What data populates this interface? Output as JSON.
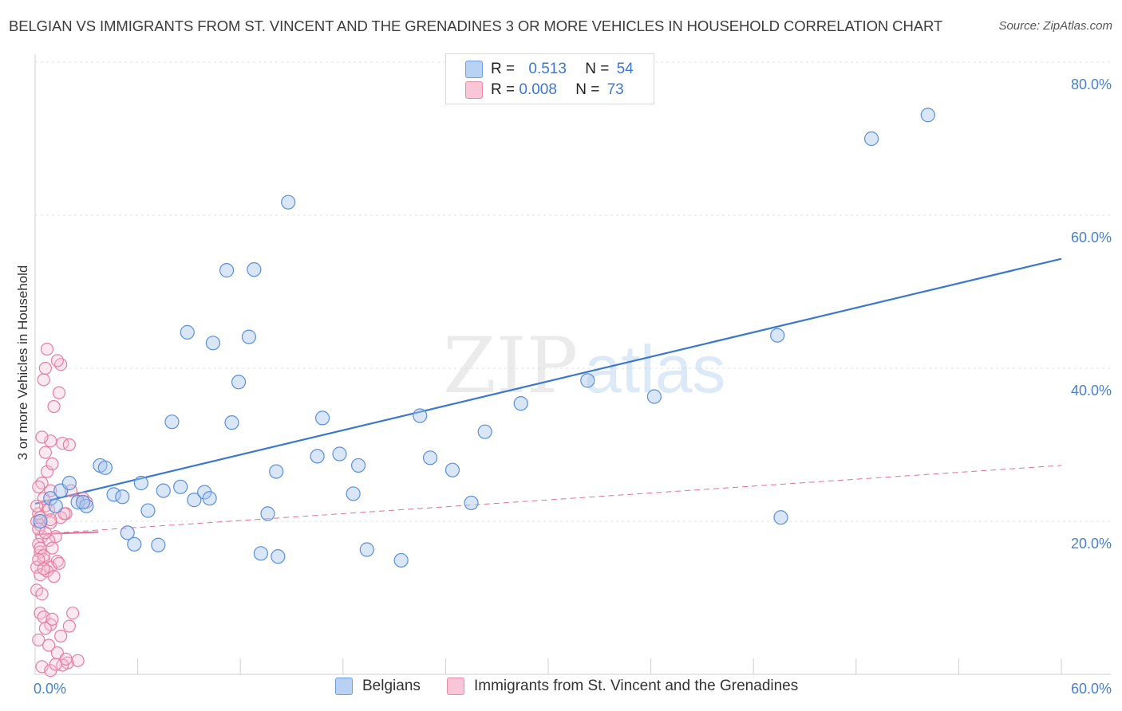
{
  "title": "BELGIAN VS IMMIGRANTS FROM ST. VINCENT AND THE GRENADINES 3 OR MORE VEHICLES IN HOUSEHOLD CORRELATION CHART",
  "source": "Source: ZipAtlas.com",
  "watermark": {
    "zip": "ZIP",
    "atlas": "atlas"
  },
  "colors": {
    "blue": "#4a86d8",
    "pink": "#e8729a",
    "blue_fill": "#a9c7f0",
    "pink_fill": "#f7bfd0"
  },
  "legend_top": {
    "rows": [
      {
        "r_label": "R = ",
        "r_value": "0.513",
        "n_label": "N = ",
        "n_value": "54",
        "color": "blue"
      },
      {
        "r_label": "R = ",
        "r_value": "0.008",
        "n_label": "N = ",
        "n_value": "73",
        "color": "pink"
      }
    ]
  },
  "legend_bottom": {
    "items": [
      "Belgians",
      "Immigrants from St. Vincent and the Grenadines"
    ]
  },
  "chart_data": {
    "type": "scatter",
    "ylabel": "3 or more Vehicles in Household",
    "xlabel": "",
    "xlim": [
      0,
      60
    ],
    "ylim": [
      0,
      80
    ],
    "x_tick_labels": [
      "0.0%",
      "60.0%"
    ],
    "y_ticks": [
      20,
      40,
      60,
      80
    ],
    "y_tick_labels": [
      "20.0%",
      "40.0%",
      "60.0%",
      "80.0%"
    ],
    "grid": true,
    "legend_position": "top-center",
    "series": [
      {
        "name": "Belgians",
        "color": "blue",
        "trend": {
          "x": [
            0,
            60
          ],
          "y": [
            22.3,
            54.3
          ],
          "style": "solid"
        },
        "points": [
          [
            0.3,
            20.0
          ],
          [
            0.9,
            23.0
          ],
          [
            1.5,
            24.0
          ],
          [
            2.0,
            25.0
          ],
          [
            2.5,
            22.5
          ],
          [
            3.0,
            22.0
          ],
          [
            2.8,
            22.5
          ],
          [
            3.8,
            27.3
          ],
          [
            4.1,
            27.0
          ],
          [
            4.6,
            23.5
          ],
          [
            5.1,
            23.2
          ],
          [
            5.4,
            18.5
          ],
          [
            5.8,
            17.0
          ],
          [
            6.2,
            25.0
          ],
          [
            6.6,
            21.4
          ],
          [
            7.2,
            16.9
          ],
          [
            7.5,
            24.0
          ],
          [
            8.0,
            33.0
          ],
          [
            8.5,
            24.5
          ],
          [
            8.9,
            44.7
          ],
          [
            9.3,
            22.8
          ],
          [
            9.9,
            23.8
          ],
          [
            10.2,
            23.0
          ],
          [
            10.4,
            43.3
          ],
          [
            11.2,
            52.8
          ],
          [
            11.5,
            32.9
          ],
          [
            11.9,
            38.2
          ],
          [
            12.5,
            44.1
          ],
          [
            12.8,
            52.9
          ],
          [
            13.2,
            15.8
          ],
          [
            13.6,
            21.0
          ],
          [
            14.1,
            26.5
          ],
          [
            14.2,
            15.4
          ],
          [
            14.8,
            61.7
          ],
          [
            16.5,
            28.5
          ],
          [
            16.8,
            33.5
          ],
          [
            17.8,
            28.8
          ],
          [
            18.6,
            23.6
          ],
          [
            18.9,
            27.3
          ],
          [
            19.4,
            16.3
          ],
          [
            21.4,
            14.9
          ],
          [
            22.5,
            33.8
          ],
          [
            23.1,
            28.3
          ],
          [
            24.4,
            26.7
          ],
          [
            25.5,
            22.4
          ],
          [
            26.3,
            31.7
          ],
          [
            28.4,
            35.4
          ],
          [
            32.3,
            38.4
          ],
          [
            36.2,
            36.3
          ],
          [
            43.4,
            44.3
          ],
          [
            43.6,
            20.5
          ],
          [
            48.9,
            70.0
          ],
          [
            52.2,
            73.1
          ],
          [
            1.2,
            22.0
          ]
        ]
      },
      {
        "name": "Immigrants from St. Vincent and the Grenadines",
        "color": "pink",
        "trend_solid": {
          "x": [
            0,
            3.7
          ],
          "y": [
            18.3,
            18.6
          ]
        },
        "trend_dashed": {
          "x": [
            0,
            60
          ],
          "y": [
            18.3,
            27.3
          ]
        },
        "points": [
          [
            0.1,
            20.0
          ],
          [
            0.2,
            21.0
          ],
          [
            0.3,
            19.5
          ],
          [
            0.4,
            18.0
          ],
          [
            0.2,
            17.0
          ],
          [
            0.3,
            16.0
          ],
          [
            0.5,
            15.0
          ],
          [
            0.1,
            14.0
          ],
          [
            0.3,
            13.0
          ],
          [
            0.6,
            22.0
          ],
          [
            0.8,
            21.5
          ],
          [
            0.5,
            23.0
          ],
          [
            0.9,
            24.0
          ],
          [
            0.4,
            25.0
          ],
          [
            0.7,
            26.5
          ],
          [
            1.0,
            27.5
          ],
          [
            0.6,
            29.0
          ],
          [
            0.9,
            30.5
          ],
          [
            0.4,
            31.0
          ],
          [
            1.1,
            35.0
          ],
          [
            0.5,
            38.5
          ],
          [
            0.6,
            40.0
          ],
          [
            0.7,
            42.5
          ],
          [
            1.4,
            36.8
          ],
          [
            1.5,
            40.5
          ],
          [
            1.3,
            41.0
          ],
          [
            1.6,
            30.2
          ],
          [
            2.0,
            30.0
          ],
          [
            2.1,
            24.0
          ],
          [
            1.8,
            21.0
          ],
          [
            1.5,
            20.5
          ],
          [
            0.2,
            19.0
          ],
          [
            0.9,
            19.8
          ],
          [
            1.2,
            18.0
          ],
          [
            0.8,
            17.5
          ],
          [
            0.3,
            16.5
          ],
          [
            1.0,
            16.5
          ],
          [
            0.5,
            15.5
          ],
          [
            1.3,
            14.8
          ],
          [
            0.9,
            14.0
          ],
          [
            1.4,
            14.5
          ],
          [
            0.7,
            13.5
          ],
          [
            0.3,
            8.0
          ],
          [
            0.5,
            7.5
          ],
          [
            0.9,
            6.5
          ],
          [
            1.5,
            5.0
          ],
          [
            0.2,
            4.5
          ],
          [
            0.8,
            3.8
          ],
          [
            1.3,
            2.8
          ],
          [
            1.9,
            1.5
          ],
          [
            0.4,
            1.0
          ],
          [
            0.9,
            0.5
          ],
          [
            1.6,
            1.2
          ],
          [
            2.2,
            8.0
          ],
          [
            1.7,
            21.0
          ],
          [
            2.8,
            23.0
          ],
          [
            3.0,
            22.5
          ],
          [
            0.1,
            22.0
          ],
          [
            0.2,
            24.5
          ],
          [
            1.1,
            12.8
          ],
          [
            0.6,
            6.0
          ],
          [
            2.0,
            6.3
          ],
          [
            1.8,
            2.0
          ],
          [
            2.5,
            1.8
          ],
          [
            0.1,
            11.0
          ],
          [
            0.4,
            10.5
          ],
          [
            1.2,
            1.3
          ],
          [
            0.3,
            20.5
          ],
          [
            0.2,
            15.0
          ],
          [
            0.6,
            18.5
          ],
          [
            0.9,
            20.2
          ],
          [
            0.5,
            13.8
          ],
          [
            1.0,
            7.2
          ]
        ]
      }
    ]
  }
}
